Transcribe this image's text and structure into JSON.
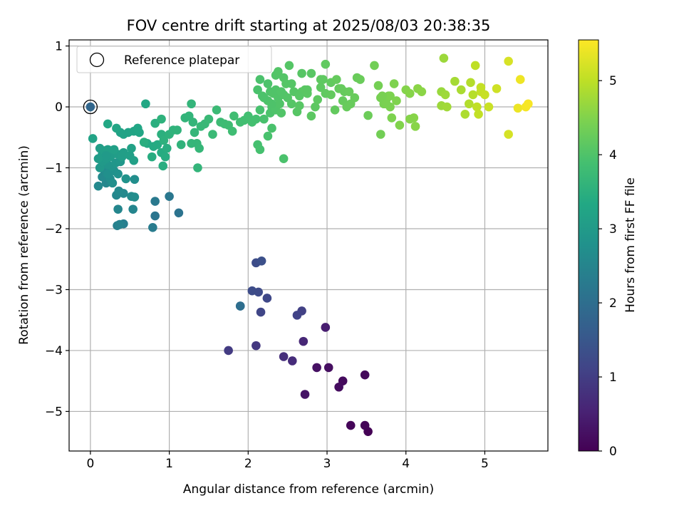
{
  "chart_data": {
    "type": "scatter",
    "title": "FOV centre drift starting at 2025/08/03 20:38:35",
    "xlabel": "Angular distance from reference (arcmin)",
    "ylabel": "Rotation from reference (arcmin)",
    "xlim": [
      -0.27,
      5.8
    ],
    "ylim": [
      -5.65,
      1.1
    ],
    "xticks": [
      0,
      1,
      2,
      3,
      4,
      5
    ],
    "yticks": [
      -5,
      -4,
      -3,
      -2,
      -1,
      0,
      1
    ],
    "xtick_labels": [
      "0",
      "1",
      "2",
      "3",
      "4",
      "5"
    ],
    "ytick_labels": [
      "−5",
      "−4",
      "−3",
      "−2",
      "−1",
      "0",
      "1"
    ],
    "grid": true,
    "legend": {
      "entries": [
        "Reference platepar"
      ],
      "placement": "top-left"
    },
    "reference_point": {
      "x": 0,
      "y": 0
    },
    "colorbar": {
      "label": "Hours from first FF file",
      "range": [
        0,
        5.55
      ],
      "ticks": [
        0,
        1,
        2,
        3,
        4,
        5
      ],
      "tick_labels": [
        "0",
        "1",
        "2",
        "3",
        "4",
        "5"
      ],
      "colormap": "viridis"
    },
    "series": [
      {
        "points": [
          [
            3.52,
            -5.33,
            0.02
          ],
          [
            3.48,
            -5.23,
            0.05
          ],
          [
            3.3,
            -5.23,
            0.08
          ],
          [
            3.48,
            -4.4,
            0.12
          ],
          [
            3.2,
            -4.5,
            0.15
          ],
          [
            3.15,
            -4.6,
            0.18
          ],
          [
            3.02,
            -4.28,
            0.22
          ],
          [
            2.87,
            -4.28,
            0.26
          ],
          [
            2.72,
            -4.72,
            0.3
          ],
          [
            2.98,
            -3.62,
            0.45
          ],
          [
            2.7,
            -3.85,
            0.6
          ],
          [
            2.56,
            -4.17,
            0.7
          ],
          [
            2.45,
            -4.1,
            0.75
          ],
          [
            2.1,
            -3.92,
            0.9
          ],
          [
            1.75,
            -4.0,
            0.95
          ],
          [
            2.68,
            -3.35,
            1.05
          ],
          [
            2.62,
            -3.42,
            1.1
          ],
          [
            2.16,
            -3.37,
            1.15
          ],
          [
            2.24,
            -3.14,
            1.2
          ],
          [
            2.13,
            -3.04,
            1.25
          ],
          [
            2.05,
            -3.02,
            1.28
          ],
          [
            2.1,
            -2.56,
            1.3
          ],
          [
            2.17,
            -2.53,
            1.35
          ],
          [
            1.9,
            -3.27,
            1.9
          ],
          [
            1.9,
            -3.27,
            2.0
          ],
          [
            1.12,
            -1.74,
            2.1
          ],
          [
            0.82,
            -1.79,
            2.15
          ],
          [
            1.0,
            -1.47,
            2.2
          ],
          [
            0.82,
            -1.55,
            2.25
          ],
          [
            0.79,
            -1.98,
            2.3
          ],
          [
            0.42,
            -1.92,
            2.35
          ],
          [
            0.34,
            -1.95,
            2.4
          ],
          [
            0.37,
            -1.93,
            2.45
          ],
          [
            0.54,
            -1.68,
            2.5
          ],
          [
            0.35,
            -1.68,
            2.52
          ],
          [
            0.33,
            -1.45,
            2.55
          ],
          [
            0.42,
            -1.42,
            2.6
          ],
          [
            0.36,
            -1.38,
            2.62
          ],
          [
            0.52,
            -1.47,
            2.65
          ],
          [
            0.56,
            -1.48,
            2.68
          ],
          [
            0.56,
            -1.19,
            2.7
          ],
          [
            0.1,
            -1.3,
            2.6
          ],
          [
            0.2,
            -1.25,
            2.55
          ],
          [
            0.15,
            -1.15,
            2.62
          ],
          [
            0.18,
            -1.05,
            2.65
          ],
          [
            0.25,
            -1.18,
            2.7
          ],
          [
            0.28,
            -1.25,
            2.72
          ],
          [
            0.22,
            -1.1,
            2.75
          ],
          [
            0.3,
            -1.05,
            2.78
          ],
          [
            0.35,
            -1.1,
            2.8
          ],
          [
            0.45,
            -1.18,
            2.82
          ],
          [
            0.27,
            -0.98,
            2.85
          ],
          [
            0.22,
            -0.95,
            2.88
          ],
          [
            0.32,
            -0.92,
            2.9
          ],
          [
            0.38,
            -0.9,
            2.92
          ],
          [
            0.12,
            -1.0,
            2.95
          ],
          [
            0.15,
            -0.9,
            2.97
          ],
          [
            0.2,
            -0.85,
            3.0
          ],
          [
            0.25,
            -0.82,
            3.02
          ],
          [
            0.28,
            -0.78,
            3.05
          ],
          [
            0.35,
            -0.78,
            3.07
          ],
          [
            0.4,
            -0.82,
            3.08
          ],
          [
            0.42,
            -0.75,
            3.1
          ],
          [
            0.5,
            -0.8,
            3.12
          ],
          [
            0.55,
            -0.88,
            3.14
          ],
          [
            0.52,
            -0.68,
            3.16
          ],
          [
            0.15,
            -0.78,
            3.05
          ],
          [
            0.18,
            -0.72,
            3.08
          ],
          [
            0.12,
            -0.68,
            3.1
          ],
          [
            0.22,
            -0.7,
            3.12
          ],
          [
            0.3,
            -0.7,
            3.14
          ],
          [
            0.2,
            -0.8,
            3.0
          ],
          [
            0.1,
            -0.85,
            3.03
          ],
          [
            0.38,
            -0.42,
            3.18
          ],
          [
            0.42,
            -0.45,
            3.2
          ],
          [
            0.48,
            -0.42,
            3.22
          ],
          [
            0.55,
            -0.4,
            3.24
          ],
          [
            0.62,
            -0.42,
            3.26
          ],
          [
            0.6,
            -0.35,
            3.28
          ],
          [
            0.33,
            -0.35,
            3.25
          ],
          [
            0.03,
            -0.52,
            3.2
          ],
          [
            0.22,
            -0.28,
            3.3
          ],
          [
            0.72,
            -0.6,
            3.35
          ],
          [
            0.8,
            -0.65,
            3.37
          ],
          [
            0.85,
            -0.62,
            3.38
          ],
          [
            0.9,
            -0.75,
            3.4
          ],
          [
            0.95,
            -0.82,
            3.42
          ],
          [
            0.92,
            -0.97,
            3.44
          ],
          [
            0.97,
            -0.68,
            3.45
          ],
          [
            0.78,
            -0.82,
            3.43
          ],
          [
            0.68,
            -0.58,
            3.46
          ],
          [
            0.7,
            0.05,
            3.3
          ],
          [
            0.82,
            -0.27,
            3.48
          ],
          [
            0.9,
            -0.45,
            3.5
          ],
          [
            0.93,
            -0.55,
            3.52
          ],
          [
            0.9,
            -0.2,
            3.54
          ],
          [
            1.0,
            -0.45,
            3.55
          ],
          [
            1.05,
            -0.38,
            3.56
          ],
          [
            1.1,
            -0.38,
            3.57
          ],
          [
            1.15,
            -0.62,
            3.58
          ],
          [
            1.2,
            -0.18,
            3.6
          ],
          [
            1.25,
            -0.15,
            3.61
          ],
          [
            1.28,
            0.05,
            3.62
          ],
          [
            1.3,
            -0.25,
            3.63
          ],
          [
            1.32,
            -0.42,
            3.64
          ],
          [
            1.35,
            -0.6,
            3.65
          ],
          [
            1.38,
            -0.68,
            3.66
          ],
          [
            1.28,
            -0.6,
            3.64
          ],
          [
            1.36,
            -1.0,
            3.62
          ],
          [
            1.4,
            -0.32,
            3.68
          ],
          [
            1.45,
            -0.28,
            3.7
          ],
          [
            1.5,
            -0.2,
            3.72
          ],
          [
            1.55,
            -0.45,
            3.73
          ],
          [
            1.6,
            -0.05,
            3.75
          ],
          [
            1.65,
            -0.25,
            3.77
          ],
          [
            1.7,
            -0.28,
            3.78
          ],
          [
            1.75,
            -0.3,
            3.8
          ],
          [
            1.8,
            -0.4,
            3.81
          ],
          [
            1.82,
            -0.15,
            3.82
          ],
          [
            1.9,
            -0.25,
            3.84
          ],
          [
            1.95,
            -0.22,
            3.85
          ],
          [
            2.0,
            -0.15,
            3.86
          ],
          [
            2.02,
            -0.2,
            3.87
          ],
          [
            2.05,
            -0.25,
            3.88
          ],
          [
            2.1,
            -0.2,
            3.89
          ],
          [
            2.12,
            -0.62,
            3.9
          ],
          [
            2.15,
            -0.7,
            3.91
          ],
          [
            2.15,
            -0.05,
            3.92
          ],
          [
            2.2,
            -0.2,
            3.93
          ],
          [
            2.25,
            -0.48,
            3.94
          ],
          [
            2.3,
            -0.35,
            3.95
          ],
          [
            2.45,
            -0.85,
            3.96
          ],
          [
            2.28,
            -0.1,
            3.97
          ],
          [
            2.3,
            0.0,
            3.98
          ],
          [
            2.25,
            0.1,
            3.99
          ],
          [
            2.35,
            -0.05,
            4.0
          ],
          [
            2.38,
            0.15,
            4.01
          ],
          [
            2.4,
            0.05,
            4.02
          ],
          [
            2.42,
            -0.1,
            4.03
          ],
          [
            2.45,
            0.2,
            4.04
          ],
          [
            2.5,
            0.15,
            4.05
          ],
          [
            2.55,
            0.05,
            4.06
          ],
          [
            2.58,
            0.25,
            4.07
          ],
          [
            2.62,
            -0.08,
            4.08
          ],
          [
            2.65,
            0.02,
            4.09
          ],
          [
            2.68,
            0.25,
            4.1
          ],
          [
            2.72,
            0.28,
            4.11
          ],
          [
            2.75,
            0.22,
            4.12
          ],
          [
            2.8,
            -0.15,
            4.13
          ],
          [
            2.85,
            0.0,
            4.14
          ],
          [
            2.88,
            0.12,
            4.15
          ],
          [
            2.92,
            0.32,
            4.16
          ],
          [
            2.95,
            0.45,
            4.17
          ],
          [
            2.98,
            0.22,
            4.18
          ],
          [
            3.05,
            0.4,
            4.19
          ],
          [
            3.1,
            -0.05,
            4.2
          ],
          [
            3.15,
            0.3,
            4.21
          ],
          [
            3.2,
            0.1,
            4.22
          ],
          [
            3.22,
            0.25,
            4.23
          ],
          [
            3.25,
            0.0,
            4.24
          ],
          [
            3.3,
            0.05,
            4.25
          ],
          [
            3.35,
            0.15,
            4.26
          ],
          [
            3.38,
            0.48,
            4.27
          ],
          [
            3.42,
            0.45,
            4.28
          ],
          [
            3.52,
            -0.14,
            4.3
          ],
          [
            2.12,
            0.28,
            3.95
          ],
          [
            2.2,
            0.15,
            3.97
          ],
          [
            2.25,
            0.38,
            3.98
          ],
          [
            2.28,
            0.25,
            4.0
          ],
          [
            2.32,
            0.22,
            4.02
          ],
          [
            2.35,
            0.52,
            4.03
          ],
          [
            2.38,
            0.58,
            4.04
          ],
          [
            2.45,
            0.48,
            4.05
          ],
          [
            2.52,
            0.68,
            4.06
          ],
          [
            2.48,
            0.38,
            4.07
          ],
          [
            2.68,
            0.55,
            4.08
          ],
          [
            2.8,
            0.55,
            4.1
          ],
          [
            2.15,
            0.45,
            3.96
          ],
          [
            2.18,
            0.18,
            3.97
          ],
          [
            2.3,
            0.05,
            3.99
          ],
          [
            2.35,
            0.28,
            4.01
          ],
          [
            2.42,
            0.25,
            4.03
          ],
          [
            2.55,
            0.38,
            4.06
          ],
          [
            2.65,
            0.18,
            4.09
          ],
          [
            2.75,
            0.28,
            4.11
          ],
          [
            2.92,
            0.45,
            4.16
          ],
          [
            2.98,
            0.7,
            4.18
          ],
          [
            3.05,
            0.2,
            4.2
          ],
          [
            3.12,
            0.45,
            4.22
          ],
          [
            3.18,
            0.3,
            4.23
          ],
          [
            3.28,
            0.25,
            4.25
          ],
          [
            3.6,
            0.68,
            4.35
          ],
          [
            3.65,
            0.35,
            4.38
          ],
          [
            3.68,
            0.15,
            4.4
          ],
          [
            3.72,
            0.05,
            4.42
          ],
          [
            3.75,
            0.12,
            4.43
          ],
          [
            3.78,
            0.18,
            4.44
          ],
          [
            3.8,
            0.0,
            4.45
          ],
          [
            3.82,
            -0.18,
            4.46
          ],
          [
            3.85,
            0.38,
            4.47
          ],
          [
            3.88,
            0.1,
            4.48
          ],
          [
            3.68,
            -0.45,
            4.36
          ],
          [
            3.92,
            -0.3,
            4.5
          ],
          [
            4.0,
            0.28,
            4.52
          ],
          [
            4.05,
            0.22,
            4.54
          ],
          [
            4.1,
            -0.18,
            4.55
          ],
          [
            4.12,
            -0.32,
            4.56
          ],
          [
            4.15,
            0.3,
            4.57
          ],
          [
            4.2,
            0.25,
            4.58
          ],
          [
            4.05,
            -0.2,
            4.53
          ],
          [
            3.8,
            0.18,
            4.46
          ],
          [
            3.75,
            0.05,
            4.44
          ],
          [
            3.7,
            0.18,
            4.42
          ],
          [
            4.45,
            0.25,
            4.7
          ],
          [
            4.45,
            0.02,
            4.72
          ],
          [
            4.5,
            0.2,
            4.74
          ],
          [
            4.52,
            0.0,
            4.76
          ],
          [
            4.48,
            0.8,
            4.72
          ],
          [
            4.62,
            0.42,
            4.8
          ],
          [
            4.7,
            0.28,
            4.84
          ],
          [
            4.75,
            -0.12,
            4.86
          ],
          [
            4.8,
            0.05,
            4.9
          ],
          [
            4.82,
            0.4,
            4.92
          ],
          [
            4.85,
            0.2,
            4.94
          ],
          [
            4.88,
            0.68,
            5.0
          ],
          [
            4.9,
            0.0,
            5.02
          ],
          [
            4.92,
            -0.12,
            5.04
          ],
          [
            4.95,
            0.25,
            5.05
          ],
          [
            4.95,
            0.32,
            5.06
          ],
          [
            5.0,
            0.2,
            5.08
          ],
          [
            5.05,
            0.0,
            5.1
          ],
          [
            5.15,
            0.3,
            5.14
          ],
          [
            5.3,
            -0.45,
            5.2
          ],
          [
            5.3,
            0.75,
            5.22
          ],
          [
            5.42,
            -0.02,
            5.4
          ],
          [
            5.45,
            0.45,
            5.42
          ],
          [
            5.52,
            0.0,
            5.48
          ],
          [
            5.55,
            0.05,
            5.5
          ]
        ]
      }
    ]
  }
}
